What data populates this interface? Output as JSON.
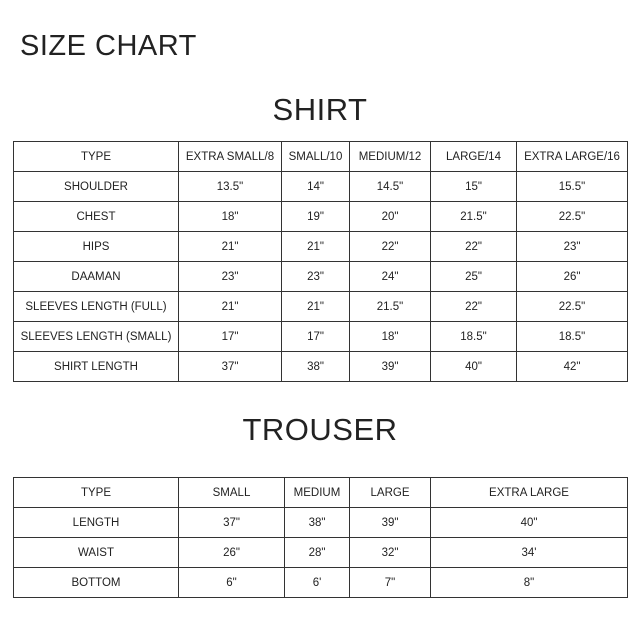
{
  "title": "SIZE CHART",
  "shirt": {
    "heading": "SHIRT",
    "columns": [
      "TYPE",
      "EXTRA SMALL/8",
      "SMALL/10",
      "MEDIUM/12",
      "LARGE/14",
      "EXTRA LARGE/16"
    ],
    "rows": [
      [
        "SHOULDER",
        "13.5\"",
        "14\"",
        "14.5\"",
        "15\"",
        "15.5\""
      ],
      [
        "CHEST",
        "18\"",
        "19\"",
        "20\"",
        "21.5\"",
        "22.5\""
      ],
      [
        "HIPS",
        "21\"",
        "21\"",
        "22\"",
        "22\"",
        "23\""
      ],
      [
        "DAAMAN",
        "23\"",
        "23\"",
        "24\"",
        "25\"",
        "26\""
      ],
      [
        "SLEEVES LENGTH (FULL)",
        "21\"",
        "21\"",
        "21.5\"",
        "22\"",
        "22.5\""
      ],
      [
        "SLEEVES LENGTH (SMALL)",
        "17\"",
        "17\"",
        "18\"",
        "18.5\"",
        "18.5\""
      ],
      [
        "SHIRT LENGTH",
        "37\"",
        "38\"",
        "39\"",
        "40\"",
        "42\""
      ]
    ]
  },
  "trouser": {
    "heading": "TROUSER",
    "columns": [
      "TYPE",
      "SMALL",
      "MEDIUM",
      "LARGE",
      "EXTRA LARGE"
    ],
    "rows": [
      [
        "LENGTH",
        "37\"",
        "38\"",
        "39\"",
        "40\""
      ],
      [
        "WAIST",
        "26\"",
        "28\"",
        "32\"",
        "34'"
      ],
      [
        "BOTTOM",
        "6\"",
        "6'",
        "7\"",
        "8\""
      ]
    ]
  }
}
